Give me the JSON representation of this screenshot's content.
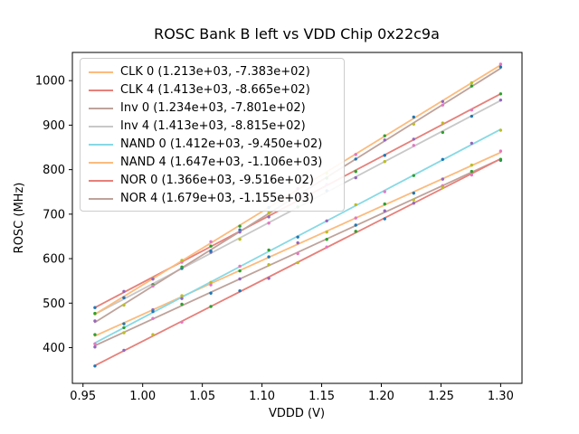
{
  "figure": {
    "title": "ROSC Bank B left vs VDD Chip 0x22c9a",
    "xlabel": "VDDD (V)",
    "ylabel": "ROSC (MHz)"
  },
  "chart_data": {
    "type": "line",
    "title": "ROSC Bank B left vs VDD Chip 0x22c9a",
    "xlabel": "VDDD (V)",
    "ylabel": "ROSC (MHz)",
    "grid": false,
    "legend_position": "upper left",
    "xlim": [
      0.9411,
      1.3179
    ],
    "ylim": [
      319.7,
      1063.4
    ],
    "x_ticks": [
      {
        "value": 0.95,
        "label": "0.95"
      },
      {
        "value": 1.0,
        "label": "1.00"
      },
      {
        "value": 1.05,
        "label": "1.05"
      },
      {
        "value": 1.1,
        "label": "1.10"
      },
      {
        "value": 1.15,
        "label": "1.15"
      },
      {
        "value": 1.2,
        "label": "1.20"
      },
      {
        "value": 1.25,
        "label": "1.25"
      },
      {
        "value": 1.3,
        "label": "1.30"
      }
    ],
    "y_ticks": [
      {
        "value": 400,
        "label": "400"
      },
      {
        "value": 500,
        "label": "500"
      },
      {
        "value": 600,
        "label": "600"
      },
      {
        "value": 700,
        "label": "700"
      },
      {
        "value": 800,
        "label": "800"
      },
      {
        "value": 900,
        "label": "900"
      },
      {
        "value": 1000,
        "label": "1000"
      }
    ],
    "x_range": [
      0.96,
      1.3
    ],
    "n_points": 15,
    "marker_colors": [
      "#2ca02c",
      "#1f77b4",
      "#9467bd",
      "#bcbd22",
      "#e377c2"
    ],
    "series": [
      {
        "name": "CLK 0",
        "label": "CLK 0 (1.213e+03, -7.383e+02)",
        "slope": 1213,
        "intercept": -738.3,
        "color": "#fcbb7d",
        "y_start": 426.2,
        "y_end": 838.6
      },
      {
        "name": "CLK 4",
        "label": "CLK 4 (1.413e+03, -8.665e+02)",
        "slope": 1413,
        "intercept": -866.5,
        "color": "#e6807a",
        "y_start": 490.0,
        "y_end": 970.4
      },
      {
        "name": "Inv 0",
        "label": "Inv 0 (1.234e+03, -7.801e+02)",
        "slope": 1234,
        "intercept": -780.1,
        "color": "#bea39b",
        "y_start": 404.5,
        "y_end": 824.1
      },
      {
        "name": "Inv 4",
        "label": "Inv 4 (1.413e+03, -8.815e+02)",
        "slope": 1413,
        "intercept": -881.5,
        "color": "#c8c8c8",
        "y_start": 475.0,
        "y_end": 955.4
      },
      {
        "name": "NAND 0",
        "label": "NAND 0 (1.412e+03, -9.450e+02)",
        "slope": 1412,
        "intercept": -945.0,
        "color": "#87d9e5",
        "y_start": 410.5,
        "y_end": 890.6
      },
      {
        "name": "NAND 4",
        "label": "NAND 4 (1.647e+03, -1.106e+03)",
        "slope": 1647,
        "intercept": -1106.0,
        "color": "#fcbb7d",
        "y_start": 475.1,
        "y_end": 1035.1
      },
      {
        "name": "NOR 0",
        "label": "NOR 0 (1.366e+03, -9.516e+02)",
        "slope": 1366,
        "intercept": -951.6,
        "color": "#e6807a",
        "y_start": 359.8,
        "y_end": 824.2
      },
      {
        "name": "NOR 4",
        "label": "NOR 4 (1.679e+03, -1.155e+03)",
        "slope": 1679,
        "intercept": -1155.0,
        "color": "#bea39b",
        "y_start": 456.8,
        "y_end": 1027.7
      }
    ]
  }
}
